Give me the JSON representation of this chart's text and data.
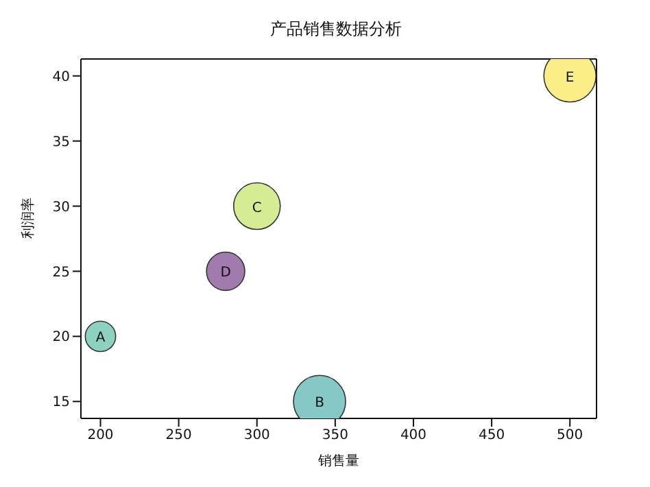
{
  "chart_data": {
    "type": "bubble",
    "title": "产品销售数据分析",
    "xlabel": "销售量",
    "ylabel": "利润率",
    "x": [
      200,
      340,
      300,
      280,
      500
    ],
    "values": [
      20,
      15,
      30,
      25,
      40
    ],
    "sizes": [
      0.34,
      1,
      0.8,
      0.54,
      1
    ],
    "colors": [
      "#8dd1c1",
      "#86c8c6",
      "#d5ec94",
      "#a17aae",
      "#fbee88"
    ],
    "xlim": [
      187.5,
      517
    ],
    "xticks": [
      200,
      250,
      300,
      350,
      400,
      450,
      500
    ],
    "ylim": [
      13.7,
      41.3
    ],
    "yticks": [
      15,
      20,
      25,
      30,
      35,
      40
    ],
    "annotations": [
      {
        "text": "A",
        "x": 200,
        "y": 20
      },
      {
        "text": "B",
        "x": 340,
        "y": 15
      },
      {
        "text": "C",
        "x": 300,
        "y": 30
      },
      {
        "text": "D",
        "x": 280,
        "y": 25
      },
      {
        "text": "E",
        "x": 500,
        "y": 40
      }
    ],
    "grid": false,
    "legend": false
  }
}
